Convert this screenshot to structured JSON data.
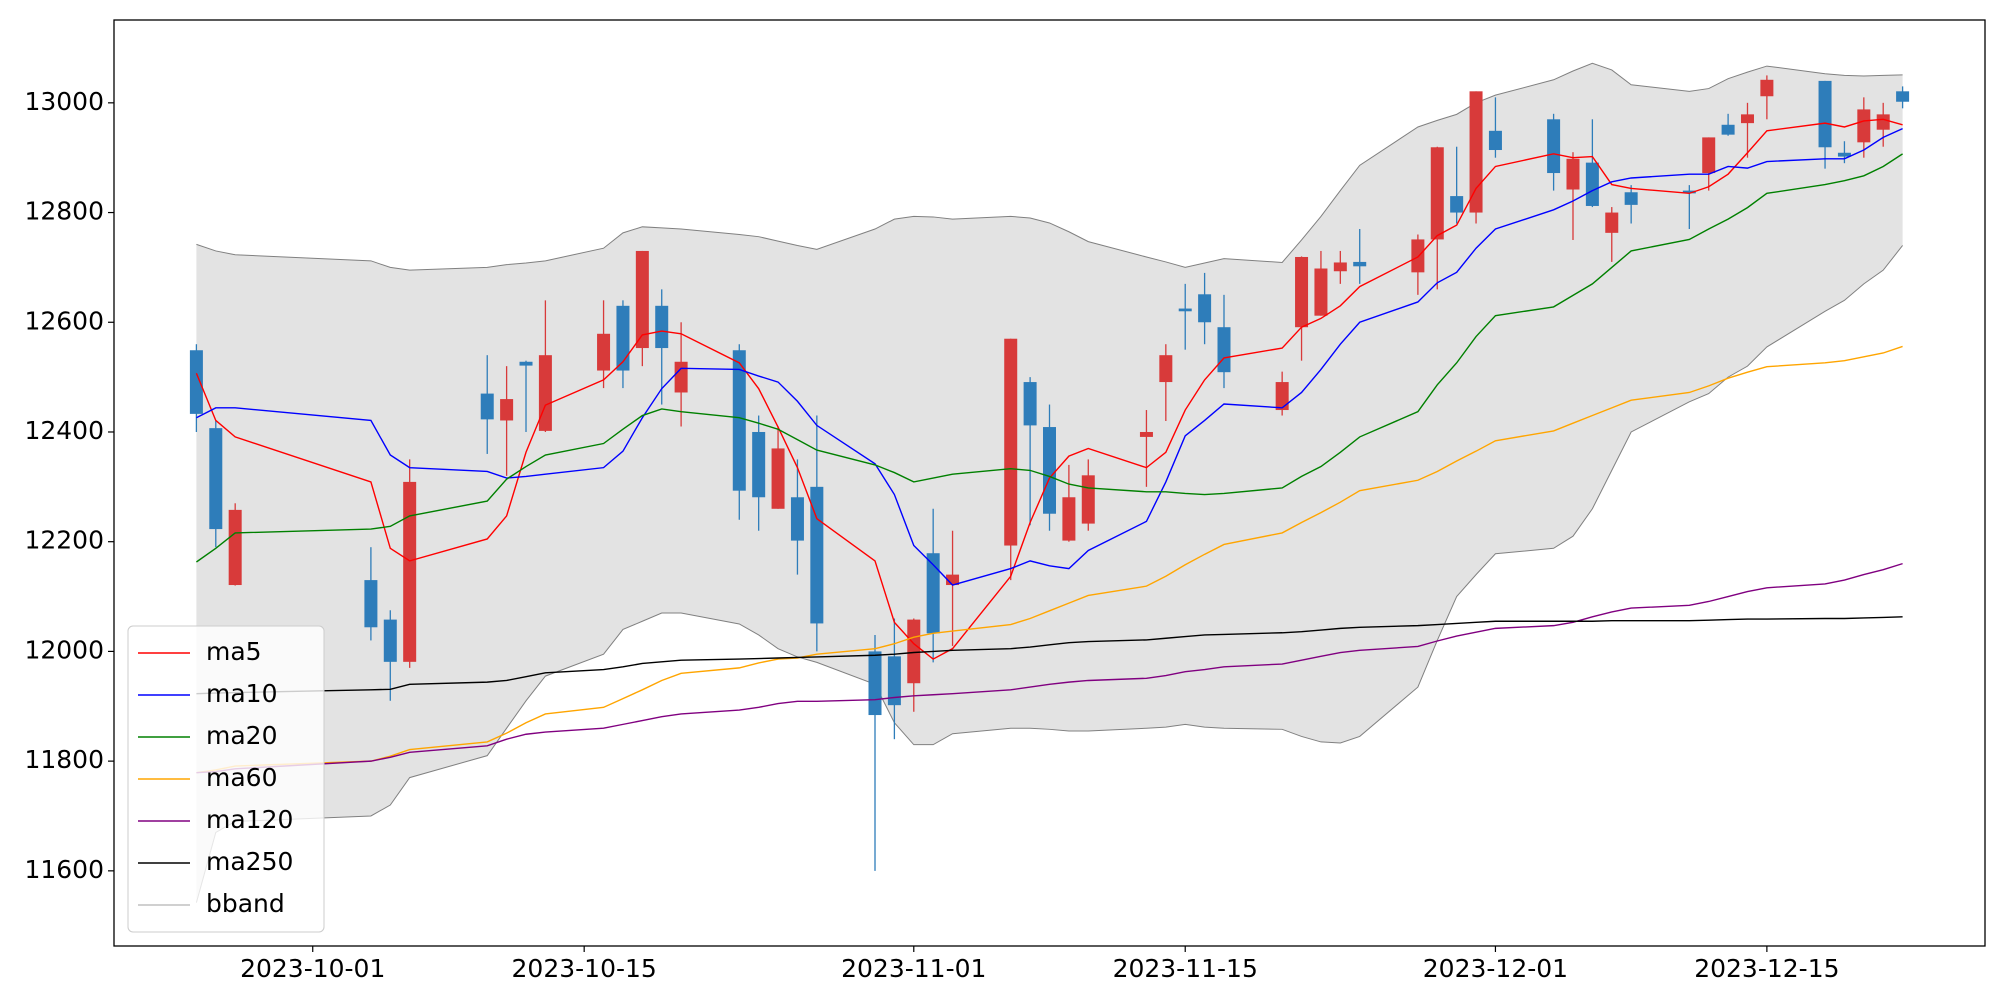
{
  "chart_data": {
    "type": "candlestick",
    "x": [
      "2023-09-25",
      "2023-09-26",
      "2023-09-27",
      "2023-10-04",
      "2023-10-05",
      "2023-10-06",
      "2023-10-10",
      "2023-10-11",
      "2023-10-12",
      "2023-10-13",
      "2023-10-16",
      "2023-10-17",
      "2023-10-18",
      "2023-10-19",
      "2023-10-20",
      "2023-10-23",
      "2023-10-24",
      "2023-10-25",
      "2023-10-26",
      "2023-10-27",
      "2023-10-30",
      "2023-10-31",
      "2023-11-01",
      "2023-11-02",
      "2023-11-03",
      "2023-11-06",
      "2023-11-07",
      "2023-11-08",
      "2023-11-09",
      "2023-11-10",
      "2023-11-13",
      "2023-11-14",
      "2023-11-15",
      "2023-11-16",
      "2023-11-17",
      "2023-11-20",
      "2023-11-21",
      "2023-11-22",
      "2023-11-23",
      "2023-11-24",
      "2023-11-27",
      "2023-11-28",
      "2023-11-29",
      "2023-11-30",
      "2023-12-01",
      "2023-12-04",
      "2023-12-05",
      "2023-12-06",
      "2023-12-07",
      "2023-12-08",
      "2023-12-11",
      "2023-12-12",
      "2023-12-13",
      "2023-12-14",
      "2023-12-15",
      "2023-12-18",
      "2023-12-19",
      "2023-12-20",
      "2023-12-21",
      "2023-12-22"
    ],
    "open": [
      12549,
      12407,
      12121,
      12130,
      12058,
      11981,
      12470,
      12421,
      12528,
      12402,
      12512,
      12630,
      12553,
      12630,
      12472,
      12549,
      12400,
      12260,
      12281,
      12300,
      12000,
      11991,
      11942,
      12179,
      12121,
      12193,
      12491,
      12409,
      12202,
      12233,
      12391,
      12491,
      12625,
      12651,
      12591,
      12440,
      12591,
      12612,
      12693,
      12710,
      12691,
      12751,
      12830,
      12800,
      12949,
      12970,
      12842,
      12891,
      12763,
      12837,
      12840,
      12872,
      12960,
      12963,
      13012,
      13040,
      12909,
      12928,
      12951,
      13021
    ],
    "high": [
      12560,
      12420,
      12270,
      12190,
      12075,
      12350,
      12540,
      12520,
      12530,
      12640,
      12640,
      12640,
      12730,
      12660,
      12600,
      12560,
      12430,
      12410,
      12350,
      12430,
      12030,
      12060,
      12060,
      12260,
      12220,
      12570,
      12500,
      12450,
      12340,
      12350,
      12440,
      12560,
      12670,
      12690,
      12650,
      12510,
      12720,
      12730,
      12730,
      12770,
      12760,
      12920,
      12920,
      13021,
      13010,
      12980,
      12910,
      12970,
      12810,
      12850,
      12850,
      12937,
      12980,
      13000,
      13050,
      13040,
      12930,
      13010,
      13000,
      13030
    ],
    "low": [
      12400,
      12190,
      12120,
      12020,
      11910,
      11970,
      12360,
      12320,
      12400,
      12400,
      12480,
      12480,
      12520,
      12450,
      12410,
      12240,
      12220,
      12260,
      12140,
      12000,
      11600,
      11840,
      11890,
      11980,
      12010,
      12130,
      12230,
      12220,
      12200,
      12220,
      12300,
      12420,
      12550,
      12560,
      12480,
      12430,
      12530,
      12612,
      12670,
      12670,
      12650,
      12660,
      12780,
      12780,
      12900,
      12840,
      12750,
      12810,
      12710,
      12780,
      12770,
      12840,
      12940,
      12900,
      12970,
      12880,
      12890,
      12900,
      12920,
      12990
    ],
    "close": [
      12433,
      12223,
      12258,
      12044,
      11981,
      12309,
      12423,
      12460,
      12521,
      12540,
      12579,
      12512,
      12730,
      12553,
      12528,
      12293,
      12281,
      12370,
      12202,
      12051,
      11884,
      11902,
      12058,
      12033,
      12140,
      12570,
      12412,
      12251,
      12281,
      12321,
      12400,
      12540,
      12620,
      12600,
      12509,
      12491,
      12719,
      12698,
      12709,
      12702,
      12751,
      12919,
      12800,
      13021,
      12914,
      12872,
      12898,
      12812,
      12800,
      12814,
      12835,
      12937,
      12942,
      12979,
      13042,
      12919,
      12902,
      12988,
      12979,
      13002
    ],
    "up_color": "#d83a3a",
    "down_color": "#2e7dba",
    "series": [
      {
        "name": "ma5",
        "color": "#ff0000",
        "values": [
          12507,
          12421,
          12391,
          12309,
          12188,
          12165,
          12205,
          12247,
          12363,
          12449,
          12495,
          12528,
          12577,
          12584,
          12579,
          12526,
          12479,
          12409,
          12335,
          12242,
          12165,
          12053,
          12014,
          11986,
          12005,
          12137,
          12235,
          12316,
          12356,
          12370,
          12335,
          12363,
          12440,
          12495,
          12535,
          12553,
          12591,
          12607,
          12630,
          12665,
          12719,
          12758,
          12777,
          12844,
          12884,
          12907,
          12900,
          12902,
          12851,
          12844,
          12835,
          12847,
          12870,
          12909,
          12949,
          12963,
          12956,
          12967,
          12970,
          12960
        ]
      },
      {
        "name": "ma10",
        "color": "#0000ff",
        "values": [
          12426,
          12444,
          12444,
          12421,
          12358,
          12335,
          12328,
          12316,
          12319,
          12323,
          12335,
          12365,
          12426,
          12479,
          12516,
          12514,
          12502,
          12491,
          12456,
          12412,
          12342,
          12286,
          12193,
          12158,
          12121,
          12151,
          12165,
          12156,
          12151,
          12184,
          12237,
          12309,
          12393,
          12421,
          12451,
          12444,
          12472,
          12514,
          12560,
          12600,
          12637,
          12672,
          12691,
          12735,
          12770,
          12805,
          12821,
          12840,
          12856,
          12863,
          12870,
          12870,
          12884,
          12881,
          12893,
          12898,
          12898,
          12914,
          12937,
          12953
        ]
      },
      {
        "name": "ma20",
        "color": "#008000",
        "values": [
          12163,
          12188,
          12216,
          12223,
          12228,
          12247,
          12274,
          12314,
          12337,
          12358,
          12379,
          12405,
          12430,
          12442,
          12437,
          12426,
          12416,
          12405,
          12386,
          12367,
          12340,
          12326,
          12309,
          12316,
          12323,
          12333,
          12330,
          12319,
          12305,
          12298,
          12291,
          12291,
          12288,
          12286,
          12288,
          12298,
          12319,
          12337,
          12363,
          12391,
          12437,
          12486,
          12526,
          12574,
          12612,
          12628,
          12649,
          12670,
          12700,
          12730,
          12751,
          12770,
          12788,
          12809,
          12835,
          12851,
          12858,
          12867,
          12884,
          12907
        ]
      },
      {
        "name": "ma60",
        "color": "#ffa500",
        "values": [
          11779,
          11784,
          11791,
          11800,
          11809,
          11821,
          11835,
          11851,
          11870,
          11886,
          11898,
          11914,
          11930,
          11947,
          11960,
          11970,
          11979,
          11986,
          11988,
          11995,
          12005,
          12014,
          12026,
          12033,
          12037,
          12049,
          12060,
          12074,
          12088,
          12102,
          12119,
          12137,
          12158,
          12177,
          12195,
          12216,
          12235,
          12253,
          12272,
          12293,
          12312,
          12328,
          12347,
          12365,
          12384,
          12402,
          12416,
          12430,
          12444,
          12458,
          12472,
          12484,
          12498,
          12509,
          12519,
          12526,
          12530,
          12537,
          12544,
          12556
        ]
      },
      {
        "name": "ma120",
        "color": "#800080",
        "values": [
          11779,
          11781,
          11786,
          11800,
          11807,
          11816,
          11828,
          11840,
          11849,
          11853,
          11860,
          11867,
          11874,
          11881,
          11886,
          11893,
          11898,
          11905,
          11909,
          11909,
          11912,
          11916,
          11919,
          11921,
          11923,
          11930,
          11935,
          11940,
          11944,
          11947,
          11951,
          11956,
          11963,
          11967,
          11972,
          11977,
          11984,
          11991,
          11998,
          12002,
          12009,
          12019,
          12028,
          12035,
          12042,
          12047,
          12053,
          12063,
          12072,
          12079,
          12084,
          12091,
          12100,
          12109,
          12116,
          12123,
          12130,
          12140,
          12149,
          12160
        ]
      },
      {
        "name": "ma250",
        "color": "#000000",
        "values": [
          11923,
          11924,
          11925,
          11930,
          11931,
          11940,
          11944,
          11947,
          11954,
          11961,
          11967,
          11972,
          11978,
          11981,
          11984,
          11986,
          11987,
          11988,
          11989,
          11990,
          11993,
          11995,
          11998,
          12000,
          12002,
          12005,
          12008,
          12012,
          12016,
          12018,
          12021,
          12024,
          12027,
          12030,
          12031,
          12034,
          12036,
          12039,
          12042,
          12044,
          12047,
          12049,
          12051,
          12053,
          12055,
          12055,
          12055,
          12055,
          12056,
          12056,
          12056,
          12057,
          12058,
          12059,
          12059,
          12060,
          12060,
          12061,
          12062,
          12063
        ]
      }
    ],
    "bband": {
      "name": "bband",
      "color": "#808080",
      "fill": "#e3e3e3",
      "upper": [
        12742,
        12730,
        12723,
        12712,
        12700,
        12695,
        12700,
        12705,
        12708,
        12712,
        12735,
        12763,
        12774,
        12772,
        12770,
        12760,
        12756,
        12748,
        12740,
        12733,
        12770,
        12788,
        12793,
        12792,
        12788,
        12793,
        12790,
        12781,
        12765,
        12747,
        12719,
        12710,
        12700,
        12708,
        12716,
        12709,
        12750,
        12793,
        12840,
        12886,
        12956,
        12968,
        12979,
        13000,
        13014,
        13042,
        13058,
        13072,
        13060,
        13033,
        13021,
        13026,
        13044,
        13056,
        13067,
        13053,
        13050,
        13049,
        13050,
        13051
      ],
      "lower": [
        11542,
        11670,
        11690,
        11700,
        11720,
        11770,
        11810,
        11860,
        11910,
        11955,
        11995,
        12040,
        12055,
        12070,
        12070,
        12050,
        12030,
        12005,
        11990,
        11980,
        11940,
        11870,
        11830,
        11830,
        11850,
        11860,
        11860,
        11858,
        11855,
        11855,
        11860,
        11862,
        11867,
        11862,
        11860,
        11858,
        11845,
        11835,
        11833,
        11845,
        11935,
        12020,
        12100,
        12140,
        12178,
        12188,
        12210,
        12260,
        12330,
        12400,
        12455,
        12470,
        12500,
        12520,
        12555,
        12620,
        12640,
        12670,
        12695,
        12740
      ]
    },
    "xlim": [
      "2023-09-20T18:00",
      "2023-12-26T06:00"
    ],
    "xticks": [
      "2023-10-01",
      "2023-10-15",
      "2023-11-01",
      "2023-11-15",
      "2023-12-01",
      "2023-12-15"
    ],
    "ylim": [
      11463,
      13151
    ],
    "yticks": [
      11600,
      11800,
      12000,
      12200,
      12400,
      12600,
      12800,
      13000
    ],
    "legend": "lower left"
  }
}
